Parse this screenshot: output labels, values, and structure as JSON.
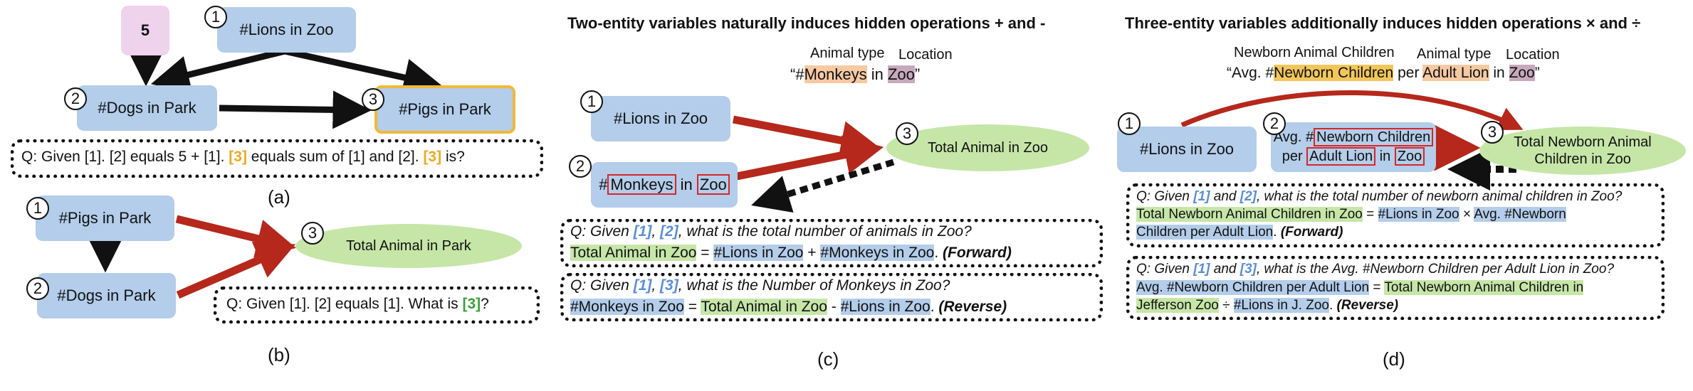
{
  "panel_a": {
    "caption": "(a)",
    "node_five": "5",
    "node1_num": "1",
    "node1": "#Lions in Zoo",
    "node2_num": "2",
    "node2": "#Dogs in Park",
    "node3_num": "3",
    "node3": "#Pigs in Park",
    "q_part1": "Q: Given [1]. [2] equals 5 + [1].",
    "q_ref1": "[3]",
    "q_part2": "equals sum of [1] and [2].",
    "q_ref2": "[3]",
    "q_part3": "is?"
  },
  "panel_b": {
    "caption": "(b)",
    "node1_num": "1",
    "node1": "#Pigs in Park",
    "node2_num": "2",
    "node2": "#Dogs in Park",
    "node3_num": "3",
    "node3": "Total Animal in Park",
    "q_part1": "Q: Given [1]. [2] equals [1]. What is",
    "q_ref": "[3]",
    "q_part2": "?"
  },
  "panel_c": {
    "caption": "(c)",
    "heading": "Two-entity variables naturally induces hidden operations + and -",
    "animal_type_label": "Animal type",
    "location_label": "Location",
    "phrase_open": "“#",
    "phrase_animal": "Monkeys",
    "phrase_mid": " in ",
    "phrase_loc": "Zoo",
    "phrase_close": "”",
    "node1_num": "1",
    "node1": "#Lions in Zoo",
    "node2_num": "2",
    "node2_prefix": "#",
    "node2_animal": "Monkeys",
    "node2_mid": " in ",
    "node2_loc": "Zoo",
    "node3_num": "3",
    "node3": "Total Animal in Zoo",
    "q1_a": "Q: Given ",
    "q1_r1": "[1]",
    "q1_b": ", ",
    "q1_r2": "[2]",
    "q1_c": ", what is the total number of animals in Zoo?",
    "f1_a": "Total Animal in Zoo",
    "f1_eq": " = ",
    "f1_b": "#Lions in Zoo",
    "f1_op": " + ",
    "f1_c": "#Monkeys in Zoo",
    "f1_end": ". ",
    "f1_tag": "(Forward)",
    "q2_a": "Q: Given ",
    "q2_r1": "[1]",
    "q2_b": ", ",
    "q2_r2": "[3]",
    "q2_c": ", what is the Number of Monkeys in Zoo?",
    "f2_a": "#Monkeys in Zoo",
    "f2_eq": " = ",
    "f2_b": "Total Animal in Zoo",
    "f2_op": " - ",
    "f2_c": "#Lions in Zoo",
    "f2_end": ". ",
    "f2_tag": "(Reverse)"
  },
  "panel_d": {
    "caption": "(d)",
    "heading": "Three-entity variables additionally induces hidden operations × and ÷",
    "label_newborn": "Newborn Animal Children",
    "label_animal": "Animal type",
    "label_location": "Location",
    "phrase_open": "“Avg. #",
    "phrase_child": "Newborn Children",
    "phrase_per": " per ",
    "phrase_animal": "Adult Lion",
    "phrase_in": " in ",
    "phrase_loc": "Zoo",
    "phrase_close": "”",
    "node1_num": "1",
    "node1": "#Lions in Zoo",
    "node2_num": "2",
    "node2_l1_a": "Avg. #",
    "node2_l1_b": "Newborn Children",
    "node2_l2_a": "per ",
    "node2_l2_b": "Adult Lion",
    "node2_l2_c": " in ",
    "node2_l2_d": "Zoo",
    "node3_num": "3",
    "node3_l1": "Total Newborn Animal",
    "node3_l2": "Children in Zoo",
    "q1_a": "Q: Given ",
    "q1_r1": "[1]",
    "q1_b": " and ",
    "q1_r2": "[2]",
    "q1_c": ", what is the total number of newborn animal children in Zoo?",
    "f1_a": "Total Newborn Animal Children in Zoo",
    "f1_eq": " = ",
    "f1_b": "#Lions in  Zoo",
    "f1_op": " × ",
    "f1_c1": "Avg. #Newborn",
    "f1_c2": "Children per Adult Lion",
    "f1_end": ". ",
    "f1_tag": "(Forward)",
    "q2_a": "Q: Given ",
    "q2_r1": "[1]",
    "q2_b": " and ",
    "q2_r2": "[3]",
    "q2_c": ", what is the Avg. #Newborn Children per Adult Lion in Zoo?",
    "f2_a": "Avg. #Newborn Children per Adult Lion",
    "f2_eq": " = ",
    "f2_b1": "Total Newborn Animal Children in",
    "f2_b2": "Jefferson Zoo",
    "f2_op": " ÷ ",
    "f2_c": "#Lions in J. Zoo",
    "f2_end": ". ",
    "f2_tag": "(Reverse)"
  },
  "colors": {
    "entity_blue": "#b3cdea",
    "total_green": "#c6e6a8",
    "arrow_red": "#b5281b",
    "highlight_orange": "#f6c9a3",
    "highlight_mauve": "#c8a9bc",
    "highlight_yellow": "#f2c75a",
    "ref_orange": "#f0a820"
  }
}
